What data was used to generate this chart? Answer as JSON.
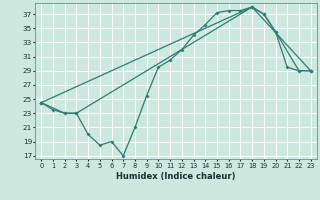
{
  "xlabel": "Humidex (Indice chaleur)",
  "bg_color": "#cde8df",
  "grid_color": "#ffffff",
  "line_color": "#2e7d6e",
  "ylim": [
    16.5,
    38.5
  ],
  "xlim": [
    -0.5,
    23.5
  ],
  "yticks": [
    17,
    19,
    21,
    23,
    25,
    27,
    29,
    31,
    33,
    35,
    37
  ],
  "xticks": [
    0,
    1,
    2,
    3,
    4,
    5,
    6,
    7,
    8,
    9,
    10,
    11,
    12,
    13,
    14,
    15,
    16,
    17,
    18,
    19,
    20,
    21,
    22,
    23
  ],
  "series1_x": [
    0,
    1,
    2,
    3,
    4,
    5,
    6,
    7,
    8,
    9,
    10,
    11,
    12,
    13,
    14,
    15,
    16,
    17,
    18,
    19,
    20,
    21,
    22,
    23
  ],
  "series1_y": [
    24.5,
    23.5,
    23.0,
    23.0,
    20.0,
    18.5,
    19.0,
    17.0,
    21.0,
    25.5,
    29.5,
    30.5,
    32.0,
    34.0,
    35.5,
    37.2,
    37.5,
    37.5,
    38.0,
    37.0,
    34.5,
    29.5,
    29.0,
    29.0
  ],
  "series2_x": [
    0,
    2,
    3,
    18,
    19,
    20,
    22,
    23
  ],
  "series2_y": [
    24.5,
    23.0,
    23.0,
    38.0,
    37.0,
    34.5,
    29.0,
    29.0
  ],
  "series3_x": [
    0,
    18,
    23
  ],
  "series3_y": [
    24.5,
    38.0,
    29.0
  ]
}
